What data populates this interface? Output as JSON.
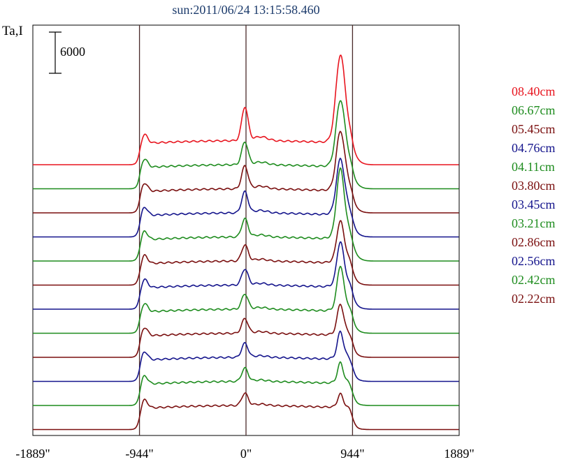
{
  "chart_data": {
    "type": "line",
    "title": "sun:2011/06/24 13:15:58.460",
    "ylabel": "Ta,I",
    "xlabel": "",
    "x_ticks": [
      {
        "value": -1889,
        "label": "-1889\""
      },
      {
        "value": -944,
        "label": "-944\""
      },
      {
        "value": 0,
        "label": "0\""
      },
      {
        "value": 944,
        "label": "944\""
      },
      {
        "value": 1889,
        "label": "1889\""
      }
    ],
    "xlim": [
      -1889,
      1889
    ],
    "reference_lines": [
      -944,
      0,
      944
    ],
    "scale_bar": {
      "value": 6000,
      "label": "6000"
    },
    "layout": "stacked-offset",
    "grid": false,
    "legend_position": "right",
    "series": [
      {
        "name": "08.40cm",
        "color": "#e8141e",
        "limb_peak": 1.0,
        "center_peak": 1.15,
        "active_peak": 2.5
      },
      {
        "name": "06.67cm",
        "color": "#1e8c1e",
        "limb_peak": 0.95,
        "center_peak": 0.78,
        "active_peak": 1.9
      },
      {
        "name": "05.45cm",
        "color": "#7a0f0f",
        "limb_peak": 0.95,
        "center_peak": 0.78,
        "active_peak": 1.7
      },
      {
        "name": "04.76cm",
        "color": "#14148c",
        "limb_peak": 0.95,
        "center_peak": 0.72,
        "active_peak": 1.6
      },
      {
        "name": "04.11cm",
        "color": "#1e8c1e",
        "limb_peak": 0.95,
        "center_peak": 0.62,
        "active_peak": 2.0
      },
      {
        "name": "03.80cm",
        "color": "#7a0f0f",
        "limb_peak": 0.95,
        "center_peak": 0.55,
        "active_peak": 1.2
      },
      {
        "name": "03.45cm",
        "color": "#14148c",
        "limb_peak": 0.95,
        "center_peak": 0.55,
        "active_peak": 1.3
      },
      {
        "name": "03.21cm",
        "color": "#1e8c1e",
        "limb_peak": 0.95,
        "center_peak": 0.52,
        "active_peak": 1.3
      },
      {
        "name": "02.86cm",
        "color": "#7a0f0f",
        "limb_peak": 0.95,
        "center_peak": 0.5,
        "active_peak": 0.9
      },
      {
        "name": "02.56cm",
        "color": "#14148c",
        "limb_peak": 0.95,
        "center_peak": 0.48,
        "active_peak": 0.8
      },
      {
        "name": "02.42cm",
        "color": "#1e8c1e",
        "limb_peak": 0.95,
        "center_peak": 0.45,
        "active_peak": 0.6
      },
      {
        "name": "02.22cm",
        "color": "#7a0f0f",
        "limb_peak": 0.95,
        "center_peak": 0.42,
        "active_peak": 0.4
      }
    ]
  }
}
